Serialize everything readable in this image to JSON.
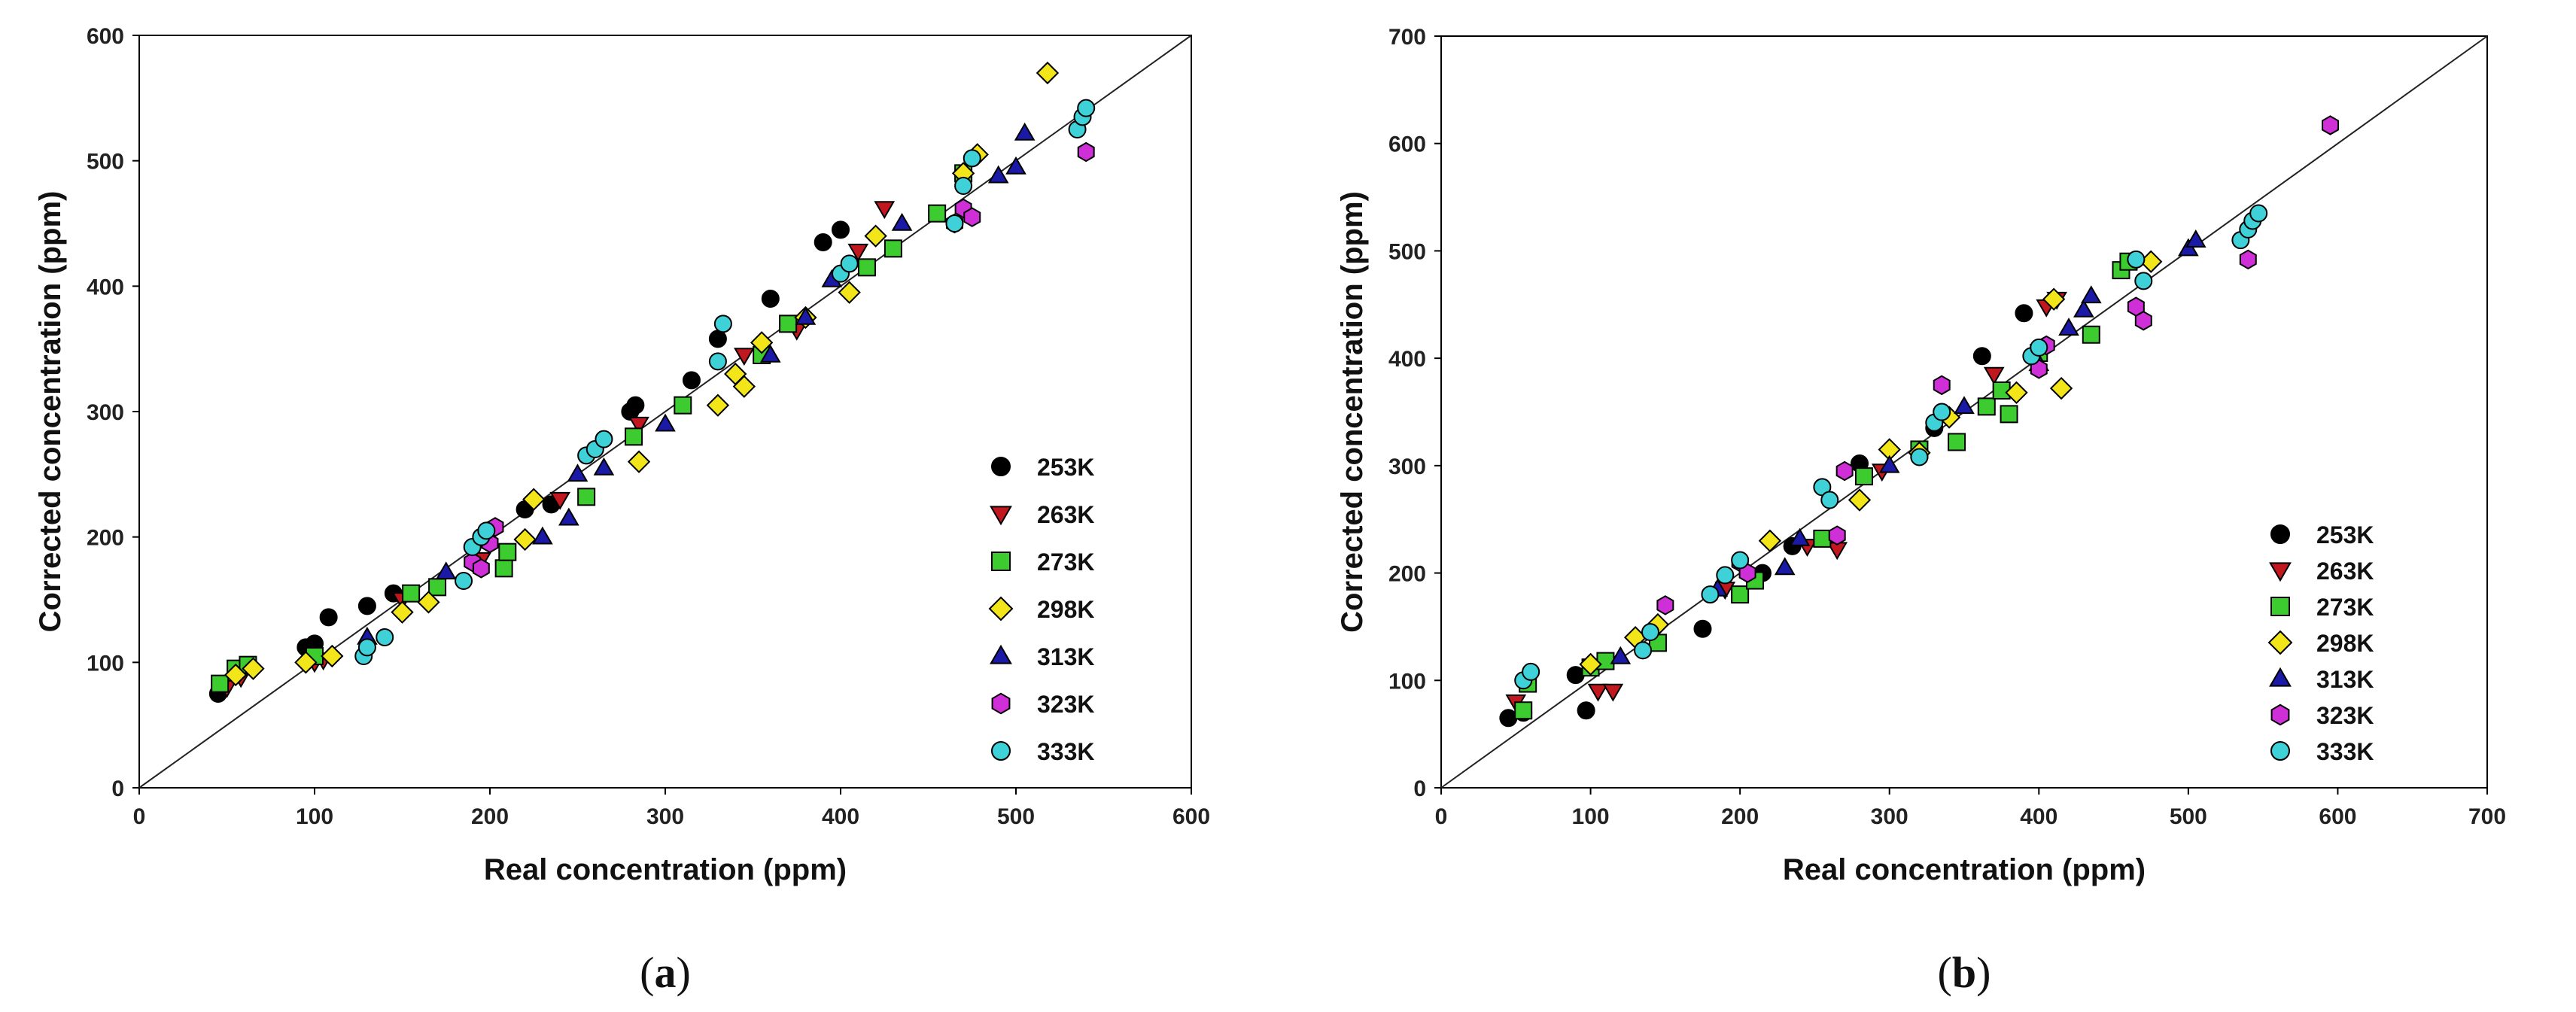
{
  "chart_data": [
    {
      "type": "scatter",
      "panel_label": "a",
      "xlabel": "Real concentration (ppm)",
      "ylabel": "Corrected concentration (ppm)",
      "xlim": [
        0,
        600
      ],
      "ylim": [
        0,
        600
      ],
      "xticks": [
        0,
        100,
        200,
        300,
        400,
        500,
        600
      ],
      "yticks": [
        0,
        100,
        200,
        300,
        400,
        500,
        600
      ],
      "reference_line": [
        [
          0,
          0
        ],
        [
          600,
          600
        ]
      ],
      "legend_position": "bottom-right",
      "series": [
        {
          "name": "253K",
          "marker": "circle",
          "color": "#000000",
          "points": [
            [
              45,
              75
            ],
            [
              95,
              112
            ],
            [
              100,
              115
            ],
            [
              108,
              136
            ],
            [
              130,
              145
            ],
            [
              145,
              155
            ],
            [
              220,
              222
            ],
            [
              235,
              226
            ],
            [
              280,
              300
            ],
            [
              283,
              305
            ],
            [
              315,
              325
            ],
            [
              330,
              358
            ],
            [
              360,
              390
            ],
            [
              390,
              435
            ],
            [
              400,
              445
            ]
          ]
        },
        {
          "name": "263K",
          "marker": "triangle-down",
          "color": "#c0181e",
          "points": [
            [
              50,
              80
            ],
            [
              58,
              88
            ],
            [
              100,
              100
            ],
            [
              105,
              102
            ],
            [
              150,
              150
            ],
            [
              195,
              182
            ],
            [
              240,
              230
            ],
            [
              285,
              290
            ],
            [
              345,
              345
            ],
            [
              375,
              365
            ],
            [
              410,
              428
            ],
            [
              425,
              462
            ]
          ]
        },
        {
          "name": "273K",
          "marker": "square",
          "color": "#3dcc2f",
          "points": [
            [
              46,
              83
            ],
            [
              55,
              95
            ],
            [
              62,
              98
            ],
            [
              100,
              105
            ],
            [
              155,
              155
            ],
            [
              170,
              160
            ],
            [
              208,
              175
            ],
            [
              210,
              188
            ],
            [
              255,
              232
            ],
            [
              282,
              280
            ],
            [
              310,
              305
            ],
            [
              355,
              345
            ],
            [
              370,
              370
            ],
            [
              415,
              415
            ],
            [
              430,
              430
            ],
            [
              455,
              458
            ],
            [
              470,
              490
            ]
          ]
        },
        {
          "name": "298K",
          "marker": "diamond",
          "color": "#f2e61a",
          "points": [
            [
              55,
              90
            ],
            [
              65,
              95
            ],
            [
              95,
              100
            ],
            [
              110,
              105
            ],
            [
              150,
              140
            ],
            [
              165,
              148
            ],
            [
              220,
              198
            ],
            [
              225,
              230
            ],
            [
              285,
              260
            ],
            [
              330,
              305
            ],
            [
              340,
              330
            ],
            [
              345,
              320
            ],
            [
              355,
              355
            ],
            [
              380,
              375
            ],
            [
              405,
              395
            ],
            [
              420,
              440
            ],
            [
              470,
              490
            ],
            [
              478,
              505
            ],
            [
              518,
              570
            ]
          ]
        },
        {
          "name": "313K",
          "marker": "triangle-up",
          "color": "#1a1aa6",
          "points": [
            [
              130,
              120
            ],
            [
              175,
              172
            ],
            [
              230,
              200
            ],
            [
              245,
              215
            ],
            [
              250,
              250
            ],
            [
              265,
              255
            ],
            [
              300,
              290
            ],
            [
              360,
              345
            ],
            [
              380,
              375
            ],
            [
              395,
              405
            ],
            [
              435,
              450
            ],
            [
              490,
              488
            ],
            [
              500,
              495
            ],
            [
              505,
              522
            ]
          ]
        },
        {
          "name": "323K",
          "marker": "hexagon",
          "color": "#cf2fd6",
          "points": [
            [
              190,
              180
            ],
            [
              195,
              175
            ],
            [
              200,
              195
            ],
            [
              203,
              208
            ],
            [
              465,
              450
            ],
            [
              470,
              462
            ],
            [
              475,
              455
            ],
            [
              540,
              507
            ]
          ]
        },
        {
          "name": "333K",
          "marker": "circle",
          "color": "#3fd1d8",
          "points": [
            [
              128,
              105
            ],
            [
              130,
              112
            ],
            [
              140,
              120
            ],
            [
              185,
              165
            ],
            [
              190,
              192
            ],
            [
              195,
              200
            ],
            [
              198,
              205
            ],
            [
              255,
              265
            ],
            [
              260,
              270
            ],
            [
              265,
              278
            ],
            [
              330,
              340
            ],
            [
              333,
              370
            ],
            [
              400,
              410
            ],
            [
              405,
              418
            ],
            [
              465,
              450
            ],
            [
              470,
              480
            ],
            [
              475,
              502
            ],
            [
              535,
              525
            ],
            [
              538,
              535
            ],
            [
              540,
              542
            ]
          ]
        }
      ]
    },
    {
      "type": "scatter",
      "panel_label": "b",
      "xlabel": "Real concentration (ppm)",
      "ylabel": "Corrected concentration (ppm)",
      "xlim": [
        0,
        700
      ],
      "ylim": [
        0,
        700
      ],
      "xticks": [
        0,
        100,
        200,
        300,
        400,
        500,
        600,
        700
      ],
      "yticks": [
        0,
        100,
        200,
        300,
        400,
        500,
        600,
        700
      ],
      "reference_line": [
        [
          0,
          0
        ],
        [
          700,
          700
        ]
      ],
      "legend_position": "bottom-right",
      "series": [
        {
          "name": "253K",
          "marker": "circle",
          "color": "#000000",
          "points": [
            [
              45,
              65
            ],
            [
              55,
              70
            ],
            [
              90,
              105
            ],
            [
              97,
              72
            ],
            [
              175,
              148
            ],
            [
              215,
              200
            ],
            [
              235,
              225
            ],
            [
              280,
              302
            ],
            [
              330,
              335
            ],
            [
              362,
              402
            ],
            [
              390,
              442
            ]
          ]
        },
        {
          "name": "263K",
          "marker": "triangle-down",
          "color": "#c0181e",
          "points": [
            [
              50,
              80
            ],
            [
              105,
              90
            ],
            [
              115,
              90
            ],
            [
              190,
              185
            ],
            [
              245,
              225
            ],
            [
              265,
              222
            ],
            [
              295,
              295
            ],
            [
              370,
              385
            ],
            [
              405,
              448
            ],
            [
              412,
              455
            ]
          ]
        },
        {
          "name": "273K",
          "marker": "square",
          "color": "#3dcc2f",
          "points": [
            [
              55,
              72
            ],
            [
              58,
              97
            ],
            [
              100,
              112
            ],
            [
              110,
              118
            ],
            [
              145,
              135
            ],
            [
              200,
              180
            ],
            [
              210,
              193
            ],
            [
              255,
              232
            ],
            [
              283,
              290
            ],
            [
              320,
              315
            ],
            [
              345,
              322
            ],
            [
              365,
              355
            ],
            [
              375,
              370
            ],
            [
              380,
              348
            ],
            [
              400,
              405
            ],
            [
              435,
              422
            ],
            [
              455,
              482
            ],
            [
              460,
              490
            ]
          ]
        },
        {
          "name": "298K",
          "marker": "diamond",
          "color": "#f2e61a",
          "points": [
            [
              100,
              115
            ],
            [
              130,
              140
            ],
            [
              145,
              152
            ],
            [
              220,
              230
            ],
            [
              280,
              268
            ],
            [
              300,
              315
            ],
            [
              320,
              312
            ],
            [
              340,
              345
            ],
            [
              385,
              368
            ],
            [
              410,
              455
            ],
            [
              415,
              372
            ],
            [
              475,
              490
            ]
          ]
        },
        {
          "name": "313K",
          "marker": "triangle-up",
          "color": "#1a1aa6",
          "points": [
            [
              120,
              122
            ],
            [
              185,
              185
            ],
            [
              230,
              205
            ],
            [
              240,
              232
            ],
            [
              300,
              300
            ],
            [
              350,
              355
            ],
            [
              400,
              395
            ],
            [
              420,
              428
            ],
            [
              430,
              445
            ],
            [
              435,
              458
            ],
            [
              500,
              502
            ],
            [
              505,
              510
            ]
          ]
        },
        {
          "name": "323K",
          "marker": "hexagon",
          "color": "#cf2fd6",
          "points": [
            [
              150,
              170
            ],
            [
              200,
              210
            ],
            [
              205,
              200
            ],
            [
              265,
              235
            ],
            [
              270,
              295
            ],
            [
              335,
              375
            ],
            [
              400,
              390
            ],
            [
              405,
              412
            ],
            [
              465,
              448
            ],
            [
              470,
              435
            ],
            [
              540,
              492
            ],
            [
              595,
              617
            ]
          ]
        },
        {
          "name": "333K",
          "marker": "circle",
          "color": "#3fd1d8",
          "points": [
            [
              55,
              100
            ],
            [
              60,
              108
            ],
            [
              135,
              128
            ],
            [
              140,
              145
            ],
            [
              180,
              180
            ],
            [
              190,
              198
            ],
            [
              200,
              212
            ],
            [
              255,
              280
            ],
            [
              260,
              268
            ],
            [
              320,
              308
            ],
            [
              330,
              340
            ],
            [
              335,
              350
            ],
            [
              395,
              402
            ],
            [
              400,
              410
            ],
            [
              465,
              492
            ],
            [
              470,
              472
            ],
            [
              535,
              510
            ],
            [
              540,
              520
            ],
            [
              543,
              528
            ],
            [
              547,
              535
            ]
          ]
        }
      ]
    }
  ]
}
